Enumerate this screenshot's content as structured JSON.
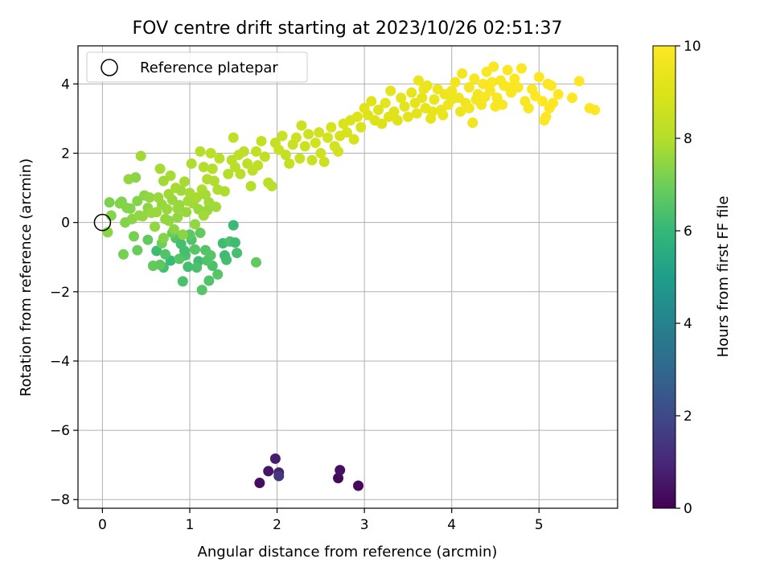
{
  "chart_data": {
    "type": "scatter",
    "title": "FOV centre drift starting at 2023/10/26 02:51:37",
    "xlabel": "Angular distance from reference (arcmin)",
    "ylabel": "Rotation from reference (arcmin)",
    "xlim": [
      -0.28,
      5.9
    ],
    "ylim": [
      -8.25,
      5.1
    ],
    "x_ticks": [
      0,
      1,
      2,
      3,
      4,
      5
    ],
    "y_ticks": [
      -8,
      -6,
      -4,
      -2,
      0,
      2,
      4
    ],
    "x_tick_labels": [
      "0",
      "1",
      "2",
      "3",
      "4",
      "5"
    ],
    "y_tick_labels": [
      "−8",
      "−6",
      "−4",
      "−2",
      "0",
      "2",
      "4"
    ],
    "grid": true,
    "legend": {
      "position": "top-left",
      "entries": [
        "Reference platepar"
      ]
    },
    "reference_point": {
      "x": 0,
      "y": 0,
      "label": "Reference platepar"
    },
    "colorbar": {
      "label": "Hours from first FF file",
      "range": [
        0,
        10
      ],
      "ticks": [
        0,
        2,
        4,
        6,
        8,
        10
      ],
      "tick_labels": [
        "0",
        "2",
        "4",
        "6",
        "8",
        "10"
      ],
      "colormap": "viridis"
    },
    "series": [
      {
        "points": [
          [
            1.8,
            -7.52,
            0.3
          ],
          [
            1.9,
            -7.18,
            0.5
          ],
          [
            1.98,
            -6.82,
            0.7
          ],
          [
            2.02,
            -7.22,
            0.9
          ],
          [
            2.02,
            -7.32,
            1.4
          ],
          [
            2.7,
            -7.38,
            0.2
          ],
          [
            2.72,
            -7.15,
            0.4
          ],
          [
            2.93,
            -7.6,
            0.2
          ],
          [
            0.62,
            -0.82,
            6.2
          ],
          [
            0.7,
            -1.3,
            6.3
          ],
          [
            0.78,
            -1.1,
            6.1
          ],
          [
            0.92,
            -1.7,
            6.4
          ],
          [
            0.98,
            -1.28,
            6.3
          ],
          [
            1.1,
            -1.12,
            6.2
          ],
          [
            1.14,
            -1.95,
            6.6
          ],
          [
            1.22,
            -1.68,
            6.5
          ],
          [
            1.26,
            -1.25,
            6.4
          ],
          [
            1.32,
            -1.5,
            6.6
          ],
          [
            1.38,
            -0.6,
            6.2
          ],
          [
            1.42,
            -1.08,
            6.3
          ],
          [
            1.46,
            -0.55,
            6.4
          ],
          [
            1.5,
            -0.08,
            6.1
          ],
          [
            1.52,
            -0.58,
            6.2
          ],
          [
            1.54,
            -0.88,
            6.3
          ],
          [
            1.76,
            -1.15,
            6.8
          ],
          [
            0.84,
            -0.45,
            6.5
          ],
          [
            0.9,
            -0.62,
            6.3
          ],
          [
            0.95,
            -0.95,
            6.4
          ],
          [
            1.02,
            -0.5,
            6.5
          ],
          [
            1.06,
            -0.78,
            6.6
          ],
          [
            1.18,
            -0.8,
            6.5
          ],
          [
            0.72,
            -0.92,
            6.5
          ],
          [
            0.66,
            -1.22,
            6.7
          ],
          [
            0.58,
            -1.25,
            6.8
          ],
          [
            0.88,
            -1.05,
            6.6
          ],
          [
            1.0,
            -0.35,
            6.7
          ],
          [
            1.12,
            -0.3,
            6.8
          ],
          [
            0.8,
            -0.3,
            6.9
          ],
          [
            0.52,
            -0.5,
            6.8
          ],
          [
            0.4,
            -0.8,
            6.9
          ],
          [
            0.24,
            -0.92,
            7.1
          ],
          [
            0.68,
            -0.6,
            7.0
          ],
          [
            1.24,
            -0.95,
            6.6
          ],
          [
            1.08,
            -1.3,
            6.4
          ],
          [
            0.94,
            -0.82,
            6.3
          ],
          [
            1.2,
            -1.1,
            6.5
          ],
          [
            1.4,
            -0.95,
            6.2
          ],
          [
            0.08,
            0.58,
            7.2
          ],
          [
            0.1,
            0.2,
            7.3
          ],
          [
            0.06,
            -0.28,
            7.4
          ],
          [
            0.22,
            0.6,
            7.2
          ],
          [
            0.28,
            0.42,
            7.3
          ],
          [
            0.3,
            1.25,
            7.5
          ],
          [
            0.34,
            0.1,
            7.4
          ],
          [
            0.36,
            -0.4,
            7.1
          ],
          [
            0.38,
            1.3,
            7.4
          ],
          [
            0.4,
            0.62,
            7.3
          ],
          [
            0.44,
            1.92,
            7.7
          ],
          [
            0.46,
            0.18,
            7.5
          ],
          [
            0.48,
            0.78,
            7.4
          ],
          [
            0.52,
            0.42,
            7.4
          ],
          [
            0.54,
            0.72,
            7.5
          ],
          [
            0.56,
            0.28,
            7.6
          ],
          [
            0.6,
            -0.12,
            7.5
          ],
          [
            0.62,
            0.3,
            7.6
          ],
          [
            0.66,
            1.55,
            7.8
          ],
          [
            0.68,
            0.52,
            7.6
          ],
          [
            0.7,
            1.2,
            7.7
          ],
          [
            0.72,
            0.1,
            7.5
          ],
          [
            0.74,
            0.38,
            7.6
          ],
          [
            0.76,
            0.82,
            7.7
          ],
          [
            0.78,
            1.35,
            7.8
          ],
          [
            0.8,
            0.65,
            7.6
          ],
          [
            0.82,
            -0.2,
            7.4
          ],
          [
            0.84,
            1.0,
            7.8
          ],
          [
            0.86,
            0.15,
            7.5
          ],
          [
            0.88,
            0.5,
            7.6
          ],
          [
            0.9,
            0.92,
            7.7
          ],
          [
            0.92,
            -0.35,
            7.4
          ],
          [
            0.94,
            1.18,
            7.8
          ],
          [
            0.96,
            0.3,
            7.6
          ],
          [
            0.98,
            0.62,
            7.7
          ],
          [
            1.0,
            0.85,
            7.8
          ],
          [
            1.02,
            1.7,
            7.9
          ],
          [
            1.04,
            0.55,
            7.7
          ],
          [
            1.06,
            -0.05,
            7.5
          ],
          [
            1.08,
            0.72,
            7.8
          ],
          [
            1.1,
            0.38,
            7.6
          ],
          [
            1.12,
            2.05,
            8.0
          ],
          [
            1.14,
            0.95,
            7.9
          ],
          [
            1.16,
            1.6,
            8.0
          ],
          [
            1.18,
            0.8,
            7.8
          ],
          [
            1.2,
            1.25,
            7.9
          ],
          [
            1.22,
            0.58,
            7.7
          ],
          [
            1.24,
            2.0,
            8.1
          ],
          [
            1.26,
            1.55,
            8.0
          ],
          [
            1.28,
            1.2,
            7.9
          ],
          [
            1.3,
            0.45,
            7.7
          ],
          [
            1.32,
            0.95,
            7.9
          ],
          [
            1.34,
            1.85,
            8.1
          ],
          [
            1.4,
            0.9,
            7.9
          ],
          [
            1.44,
            1.4,
            8.0
          ],
          [
            1.48,
            1.8,
            8.1
          ],
          [
            1.5,
            2.45,
            8.2
          ],
          [
            1.52,
            1.6,
            8.1
          ],
          [
            1.56,
            1.95,
            8.2
          ],
          [
            1.58,
            1.4,
            8.1
          ],
          [
            1.62,
            2.05,
            8.2
          ],
          [
            1.66,
            1.7,
            8.2
          ],
          [
            1.7,
            1.05,
            8.0
          ],
          [
            1.72,
            1.5,
            8.2
          ],
          [
            1.76,
            2.05,
            8.3
          ],
          [
            1.78,
            1.65,
            8.2
          ],
          [
            1.82,
            2.35,
            8.4
          ],
          [
            1.86,
            1.9,
            8.3
          ],
          [
            1.9,
            1.15,
            8.1
          ],
          [
            1.94,
            1.05,
            8.1
          ],
          [
            1.2,
            0.35,
            7.6
          ],
          [
            0.2,
            0.55,
            7.3
          ],
          [
            0.26,
            0.0,
            7.3
          ],
          [
            0.32,
            0.4,
            7.3
          ],
          [
            0.42,
            0.2,
            7.5
          ],
          [
            0.64,
            0.72,
            7.6
          ],
          [
            0.7,
            -0.45,
            7.3
          ],
          [
            0.76,
            0.05,
            7.5
          ],
          [
            0.86,
            0.4,
            7.6
          ],
          [
            1.16,
            0.2,
            7.7
          ],
          [
            1.98,
            2.3,
            8.4
          ],
          [
            2.02,
            2.1,
            8.5
          ],
          [
            2.06,
            2.5,
            8.5
          ],
          [
            2.1,
            1.95,
            8.4
          ],
          [
            2.14,
            1.7,
            8.4
          ],
          [
            2.18,
            2.25,
            8.5
          ],
          [
            2.22,
            2.45,
            8.6
          ],
          [
            2.26,
            1.85,
            8.5
          ],
          [
            2.28,
            2.8,
            8.6
          ],
          [
            2.32,
            2.2,
            8.6
          ],
          [
            2.36,
            2.55,
            8.6
          ],
          [
            2.4,
            1.8,
            8.5
          ],
          [
            2.44,
            2.3,
            8.7
          ],
          [
            2.48,
            2.6,
            8.7
          ],
          [
            2.5,
            2.0,
            8.6
          ],
          [
            2.54,
            1.75,
            8.6
          ],
          [
            2.58,
            2.45,
            8.7
          ],
          [
            2.62,
            2.75,
            8.8
          ],
          [
            2.66,
            2.2,
            8.7
          ],
          [
            2.7,
            2.05,
            8.7
          ],
          [
            2.72,
            2.5,
            8.8
          ],
          [
            2.76,
            2.85,
            8.9
          ],
          [
            2.8,
            2.6,
            8.8
          ],
          [
            2.84,
            2.95,
            8.9
          ],
          [
            2.88,
            2.4,
            8.8
          ],
          [
            2.92,
            3.05,
            9.0
          ],
          [
            2.96,
            2.75,
            8.9
          ],
          [
            3.0,
            3.3,
            9.1
          ],
          [
            3.04,
            3.1,
            9.0
          ],
          [
            3.08,
            3.5,
            9.1
          ],
          [
            3.12,
            2.95,
            9.0
          ],
          [
            3.16,
            3.25,
            9.1
          ],
          [
            3.2,
            2.85,
            9.0
          ],
          [
            3.24,
            3.45,
            9.2
          ],
          [
            3.28,
            3.05,
            9.1
          ],
          [
            3.3,
            3.8,
            9.2
          ],
          [
            3.34,
            3.2,
            9.1
          ],
          [
            3.38,
            2.95,
            9.1
          ],
          [
            3.42,
            3.6,
            9.2
          ],
          [
            3.46,
            3.35,
            9.2
          ],
          [
            3.5,
            3.05,
            9.2
          ],
          [
            3.54,
            3.75,
            9.3
          ],
          [
            3.58,
            3.45,
            9.3
          ],
          [
            3.6,
            3.15,
            9.2
          ],
          [
            3.62,
            4.1,
            9.4
          ],
          [
            3.66,
            3.6,
            9.3
          ],
          [
            3.7,
            3.3,
            9.3
          ],
          [
            3.72,
            3.95,
            9.4
          ],
          [
            3.76,
            3.0,
            9.3
          ],
          [
            3.8,
            3.55,
            9.4
          ],
          [
            3.84,
            3.85,
            9.5
          ],
          [
            3.88,
            3.25,
            9.4
          ],
          [
            3.92,
            3.7,
            9.5
          ],
          [
            3.96,
            3.4,
            9.5
          ],
          [
            4.0,
            3.8,
            9.6
          ],
          [
            4.04,
            4.05,
            9.6
          ],
          [
            4.08,
            3.6,
            9.6
          ],
          [
            4.12,
            4.3,
            9.7
          ],
          [
            4.16,
            3.45,
            9.6
          ],
          [
            4.2,
            3.9,
            9.7
          ],
          [
            4.24,
            2.88,
            9.6
          ],
          [
            4.26,
            4.15,
            9.8
          ],
          [
            4.3,
            3.7,
            9.7
          ],
          [
            4.34,
            3.4,
            9.7
          ],
          [
            4.36,
            4.0,
            9.8
          ],
          [
            4.4,
            4.35,
            9.9
          ],
          [
            4.44,
            3.8,
            9.8
          ],
          [
            4.48,
            4.5,
            9.9
          ],
          [
            4.52,
            3.6,
            9.8
          ],
          [
            4.56,
            4.1,
            9.9
          ],
          [
            4.6,
            3.95,
            9.9
          ],
          [
            4.64,
            4.4,
            10.0
          ],
          [
            4.68,
            3.75,
            9.9
          ],
          [
            4.72,
            4.15,
            10.0
          ],
          [
            4.76,
            3.9,
            9.9
          ],
          [
            4.8,
            4.45,
            10.0
          ],
          [
            4.84,
            3.5,
            9.9
          ],
          [
            4.88,
            3.3,
            9.9
          ],
          [
            4.92,
            3.85,
            10.0
          ],
          [
            4.96,
            3.65,
            10.0
          ],
          [
            5.0,
            4.2,
            10.0
          ],
          [
            5.04,
            3.5,
            10.0
          ],
          [
            5.08,
            3.05,
            10.0
          ],
          [
            5.12,
            3.3,
            10.0
          ],
          [
            5.16,
            3.45,
            10.0
          ],
          [
            5.22,
            3.7,
            10.0
          ],
          [
            5.38,
            3.6,
            10.0
          ],
          [
            5.46,
            4.08,
            10.0
          ],
          [
            5.58,
            3.3,
            10.0
          ],
          [
            5.64,
            3.25,
            10.0
          ],
          [
            4.1,
            3.2,
            9.5
          ],
          [
            4.0,
            3.55,
            9.5
          ],
          [
            3.9,
            3.1,
            9.4
          ],
          [
            3.78,
            3.2,
            9.3
          ],
          [
            3.68,
            3.85,
            9.4
          ],
          [
            4.5,
            3.35,
            9.8
          ],
          [
            4.58,
            3.4,
            9.9
          ],
          [
            4.66,
            3.9,
            9.9
          ],
          [
            5.1,
            4.0,
            10.0
          ],
          [
            5.14,
            3.95,
            10.0
          ],
          [
            5.06,
            2.95,
            10.0
          ],
          [
            4.2,
            3.3,
            9.7
          ],
          [
            4.28,
            3.55,
            9.7
          ],
          [
            4.38,
            3.62,
            9.8
          ],
          [
            4.46,
            4.05,
            9.9
          ]
        ]
      }
    ]
  }
}
